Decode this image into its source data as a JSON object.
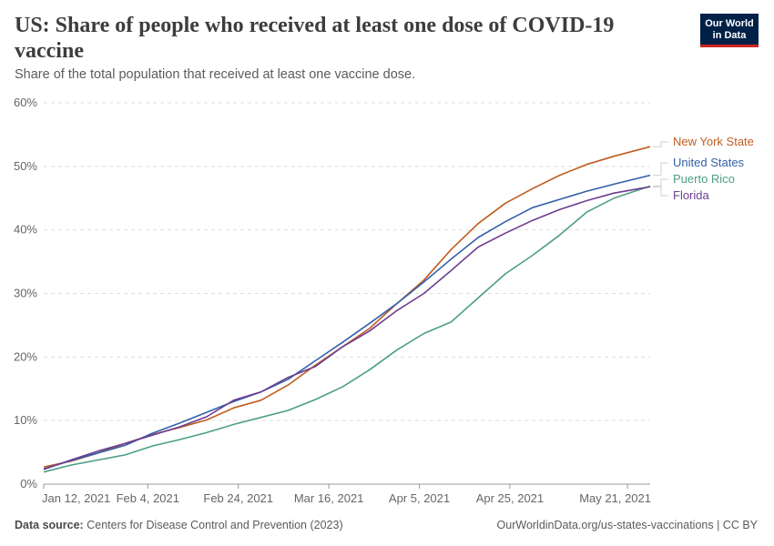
{
  "header": {
    "title": "US: Share of people who received at least one dose of COVID-19 vaccine",
    "subtitle": "Share of the total population that received at least one vaccine dose."
  },
  "logo": {
    "line1": "Our World",
    "line2": "in Data",
    "bg_color": "#002147",
    "accent_color": "#ce261e"
  },
  "footer": {
    "source_label": "Data source:",
    "source_text": "Centers for Disease Control and Prevention (2023)",
    "url_license": "OurWorldinData.org/us-states-vaccinations | CC BY"
  },
  "chart_data": {
    "type": "line",
    "title": "US: Share of people who received at least one dose of COVID-19 vaccine",
    "subtitle": "Share of the total population that received at least one vaccine dose.",
    "x_start": "2021-01-12",
    "x_end": "2021-05-26",
    "x_ticks": [
      {
        "date": "2021-01-12",
        "label": "Jan 12, 2021"
      },
      {
        "date": "2021-02-04",
        "label": "Feb 4, 2021"
      },
      {
        "date": "2021-02-24",
        "label": "Feb 24, 2021"
      },
      {
        "date": "2021-03-16",
        "label": "Mar 16, 2021"
      },
      {
        "date": "2021-04-05",
        "label": "Apr 5, 2021"
      },
      {
        "date": "2021-04-25",
        "label": "Apr 25, 2021"
      },
      {
        "date": "2021-05-21",
        "label": "May 21, 2021"
      }
    ],
    "y_ticks": [
      {
        "value": 0,
        "label": "0%"
      },
      {
        "value": 10,
        "label": "10%"
      },
      {
        "value": 20,
        "label": "20%"
      },
      {
        "value": 30,
        "label": "30%"
      },
      {
        "value": 40,
        "label": "40%"
      },
      {
        "value": 50,
        "label": "50%"
      },
      {
        "value": 60,
        "label": "60%"
      }
    ],
    "ylim": [
      0,
      60
    ],
    "grid": "horizontal dashed",
    "legend": "line-end labels",
    "series": [
      {
        "name": "New York State",
        "color": "#c15c20",
        "points": [
          [
            "2021-01-12",
            2.7
          ],
          [
            "2021-01-18",
            3.6
          ],
          [
            "2021-01-24",
            4.9
          ],
          [
            "2021-01-30",
            6.4
          ],
          [
            "2021-02-05",
            7.8
          ],
          [
            "2021-02-11",
            8.9
          ],
          [
            "2021-02-17",
            10.1
          ],
          [
            "2021-02-23",
            12.0
          ],
          [
            "2021-03-01",
            13.2
          ],
          [
            "2021-03-07",
            15.6
          ],
          [
            "2021-03-13",
            18.7
          ],
          [
            "2021-03-19",
            21.6
          ],
          [
            "2021-03-25",
            24.5
          ],
          [
            "2021-03-31",
            28.4
          ],
          [
            "2021-04-06",
            32.1
          ],
          [
            "2021-04-12",
            36.9
          ],
          [
            "2021-04-18",
            41.0
          ],
          [
            "2021-04-24",
            44.2
          ],
          [
            "2021-04-30",
            46.5
          ],
          [
            "2021-05-06",
            48.6
          ],
          [
            "2021-05-12",
            50.3
          ],
          [
            "2021-05-18",
            51.6
          ],
          [
            "2021-05-26",
            53.1
          ]
        ]
      },
      {
        "name": "United States",
        "color": "#3360a9",
        "points": [
          [
            "2021-01-12",
            2.4
          ],
          [
            "2021-01-18",
            3.7
          ],
          [
            "2021-01-24",
            4.9
          ],
          [
            "2021-01-30",
            6.1
          ],
          [
            "2021-02-05",
            8.0
          ],
          [
            "2021-02-11",
            9.6
          ],
          [
            "2021-02-17",
            11.3
          ],
          [
            "2021-02-23",
            13.0
          ],
          [
            "2021-03-01",
            14.5
          ],
          [
            "2021-03-07",
            16.5
          ],
          [
            "2021-03-13",
            19.4
          ],
          [
            "2021-03-19",
            22.3
          ],
          [
            "2021-03-25",
            25.3
          ],
          [
            "2021-03-31",
            28.4
          ],
          [
            "2021-04-06",
            31.8
          ],
          [
            "2021-04-12",
            35.4
          ],
          [
            "2021-04-18",
            38.8
          ],
          [
            "2021-04-24",
            41.3
          ],
          [
            "2021-04-30",
            43.5
          ],
          [
            "2021-05-06",
            44.8
          ],
          [
            "2021-05-12",
            46.1
          ],
          [
            "2021-05-18",
            47.2
          ],
          [
            "2021-05-26",
            48.6
          ]
        ]
      },
      {
        "name": "Puerto Rico",
        "color": "#4c9e87",
        "points": [
          [
            "2021-01-12",
            1.9
          ],
          [
            "2021-01-18",
            3.0
          ],
          [
            "2021-01-24",
            3.8
          ],
          [
            "2021-01-30",
            4.6
          ],
          [
            "2021-02-05",
            6.0
          ],
          [
            "2021-02-11",
            7.0
          ],
          [
            "2021-02-17",
            8.1
          ],
          [
            "2021-02-23",
            9.4
          ],
          [
            "2021-03-01",
            10.5
          ],
          [
            "2021-03-07",
            11.6
          ],
          [
            "2021-03-13",
            13.3
          ],
          [
            "2021-03-19",
            15.3
          ],
          [
            "2021-03-25",
            18.0
          ],
          [
            "2021-03-31",
            21.1
          ],
          [
            "2021-04-06",
            23.7
          ],
          [
            "2021-04-12",
            25.5
          ],
          [
            "2021-04-18",
            29.3
          ],
          [
            "2021-04-24",
            33.1
          ],
          [
            "2021-04-30",
            36.0
          ],
          [
            "2021-05-06",
            39.2
          ],
          [
            "2021-05-12",
            42.8
          ],
          [
            "2021-05-18",
            45.0
          ],
          [
            "2021-05-26",
            46.9
          ]
        ]
      },
      {
        "name": "Florida",
        "color": "#6d3e91",
        "points": [
          [
            "2021-01-12",
            2.3
          ],
          [
            "2021-01-18",
            3.8
          ],
          [
            "2021-01-24",
            5.2
          ],
          [
            "2021-01-30",
            6.4
          ],
          [
            "2021-02-05",
            7.7
          ],
          [
            "2021-02-11",
            9.0
          ],
          [
            "2021-02-17",
            10.6
          ],
          [
            "2021-02-23",
            13.2
          ],
          [
            "2021-03-01",
            14.5
          ],
          [
            "2021-03-07",
            16.8
          ],
          [
            "2021-03-13",
            18.5
          ],
          [
            "2021-03-19",
            21.6
          ],
          [
            "2021-03-25",
            24.1
          ],
          [
            "2021-03-31",
            27.3
          ],
          [
            "2021-04-06",
            30.0
          ],
          [
            "2021-04-12",
            33.6
          ],
          [
            "2021-04-18",
            37.3
          ],
          [
            "2021-04-24",
            39.5
          ],
          [
            "2021-04-30",
            41.5
          ],
          [
            "2021-05-06",
            43.2
          ],
          [
            "2021-05-12",
            44.6
          ],
          [
            "2021-05-18",
            45.8
          ],
          [
            "2021-05-26",
            46.8
          ]
        ]
      }
    ]
  }
}
